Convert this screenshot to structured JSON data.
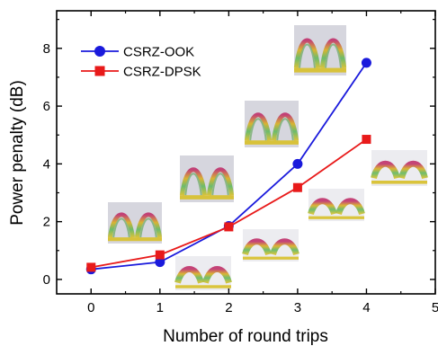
{
  "chart_data": {
    "type": "line",
    "xlabel": "Number of round trips",
    "ylabel": "Power penalty (dB)",
    "xlim": [
      -0.5,
      5
    ],
    "ylim": [
      -0.5,
      9.3
    ],
    "x_ticks": [
      0,
      1,
      2,
      3,
      4,
      5
    ],
    "y_ticks": [
      0,
      2,
      4,
      6,
      8
    ],
    "grid": false,
    "legend_position": "top-left",
    "series": [
      {
        "name": "CSRZ-OOK",
        "color": "#1a1adc",
        "marker": "circle",
        "x": [
          0,
          1,
          2,
          3,
          4
        ],
        "y": [
          0.35,
          0.6,
          1.85,
          4.0,
          7.5
        ]
      },
      {
        "name": "CSRZ-DPSK",
        "color": "#e81a1a",
        "marker": "square",
        "x": [
          0,
          1,
          2,
          3,
          4
        ],
        "y": [
          0.42,
          0.85,
          1.82,
          3.18,
          4.85
        ]
      }
    ],
    "insets": [
      {
        "name": "eye-diagram-ook-0",
        "type": "ook"
      },
      {
        "name": "eye-diagram-ook-2",
        "type": "ook"
      },
      {
        "name": "eye-diagram-ook-3",
        "type": "ook"
      },
      {
        "name": "eye-diagram-ook-4",
        "type": "ook"
      },
      {
        "name": "eye-diagram-dpsk-1",
        "type": "dpsk"
      },
      {
        "name": "eye-diagram-dpsk-2",
        "type": "dpsk"
      },
      {
        "name": "eye-diagram-dpsk-3",
        "type": "dpsk"
      },
      {
        "name": "eye-diagram-dpsk-4",
        "type": "dpsk"
      }
    ]
  }
}
